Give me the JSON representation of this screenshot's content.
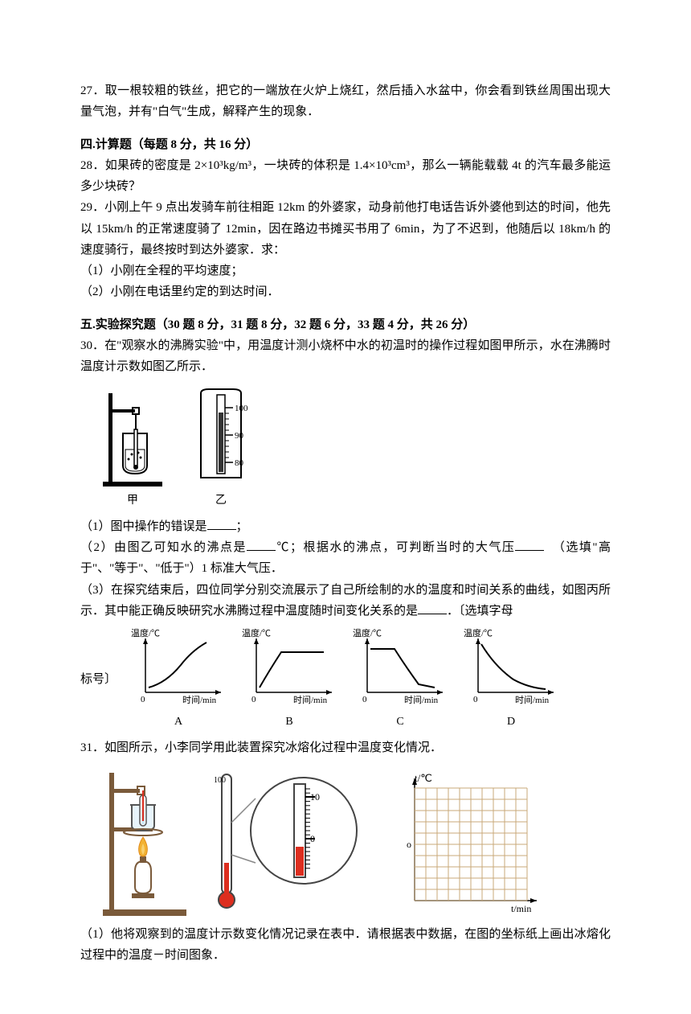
{
  "q27": {
    "number": "27．",
    "text": "取一根较粗的铁丝，把它的一端放在火炉上烧红，然后插入水盆中，你会看到铁丝周围出现大量气泡，并有\"白气\"生成，解释产生的现象．"
  },
  "sec4": {
    "title": "四.计算题（每题 8 分，共 16 分）"
  },
  "q28": {
    "number": "28．",
    "text": "如果砖的密度是 2×10³kg/m³，一块砖的体积是 1.4×10³cm³，那么一辆能载载 4t 的汽车最多能运多少块砖？"
  },
  "q29": {
    "number": "29．",
    "text": "小刚上午 9 点出发骑车前往相距 12km 的外婆家，动身前他打电话告诉外婆他到达的时间，他先以 15km/h 的正常速度骑了 12min，因在路边书摊买书用了 6min，为了不迟到，他随后以 18km/h 的速度骑行，最终按时到达外婆家．求：",
    "sub1": "（1）小刚在全程的平均速度；",
    "sub2": "（2）小刚在电话里约定的到达时间．"
  },
  "sec5": {
    "title": "五.实验探究题（30 题 8 分，31 题 8 分，32 题 6 分，33 题 4 分，共 26 分）"
  },
  "q30": {
    "number": "30．",
    "text": "在\"观察水的沸腾实验\"中，用温度计测小烧杯中水的初温时的操作过程如图甲所示，水在沸腾时温度计示数如图乙所示．",
    "fig_jia_label": "甲",
    "fig_yi_label": "乙",
    "thermo_ticks": [
      "100",
      "90",
      "80"
    ],
    "sub1_a": "（1）图中操作的错误是",
    "sub1_b": "；",
    "sub2_a": "（2）由图乙可知水的沸点是",
    "sub2_b": "℃；根据水的沸点，可判断当时的大气压",
    "sub2_c": "（选填\"高于\"、\"等于\"、\"低于\"）1 标准大气压．",
    "sub3_a": "（3）在探究结束后，四位同学分别交流展示了自己所绘制的水的温度和时间关系的曲线，如图丙所示．其中能正确反映研究水沸腾过程中温度随时间变化关系的是",
    "sub3_b": "．〔选填字母",
    "sub3_c": "标号〕",
    "chart": {
      "ylabel": "温度/℃",
      "xlabel": "时间/min",
      "labels": [
        "A",
        "B",
        "C",
        "D"
      ],
      "stroke": "#000000",
      "axis_fontsize": 11,
      "label_fontsize": 14,
      "width": 130,
      "height": 105,
      "curves": {
        "A": "concave-up-increasing",
        "B": "rise-then-plateau",
        "C": "plateau-then-fall",
        "D": "decreasing-concave-up"
      }
    }
  },
  "q31": {
    "number": "31．",
    "text": "如图所示，小李同学用此装置探究冰熔化过程中温度变化情况．",
    "thermo_detail_max": "100",
    "thermo_detail_tick": "10",
    "thermo_detail_zero": "0",
    "grid_ylabel": "t/℃",
    "grid_xlabel": "t/min",
    "grid_origin": "o",
    "grid": {
      "cols": 10,
      "rows": 10,
      "cell": 14,
      "color": "#c9a97a"
    },
    "flame_color": "#f2b233",
    "thermo_red": "#dd2e1f",
    "sub1": "（1）他将观察到的温度计示数变化情况记录在表中．请根据表中数据，在图的坐标纸上画出冰熔化过程中的温度－时间图象．"
  }
}
